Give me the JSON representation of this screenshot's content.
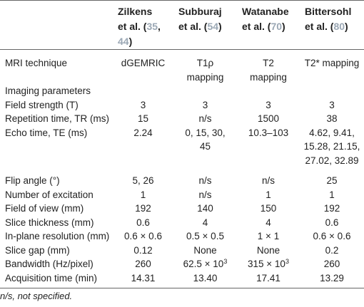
{
  "headers": {
    "c1": {
      "name": "Zilkens",
      "suffix_pre": "et al. (",
      "ref1": "35",
      "sep": ",",
      "ref2": "44",
      "close": ")"
    },
    "c2": {
      "name": "Subburaj",
      "suffix_pre": "et al. (",
      "ref1": "54",
      "close": ")"
    },
    "c3": {
      "name": "Watanabe",
      "suffix_pre": "et al. (",
      "ref1": "70",
      "close": ")"
    },
    "c4": {
      "name": "Bittersohl",
      "suffix_pre": "et al. (",
      "ref1": "80",
      "close": ")"
    }
  },
  "technique": {
    "label": "MRI technique",
    "v1": "dGEMRIC",
    "v2a": "T1ρ",
    "v2b": "mapping",
    "v3a": "T2",
    "v3b": "mapping",
    "v4": "T2* mapping"
  },
  "section": {
    "label": "Imaging parameters"
  },
  "rows": {
    "field": {
      "label": "Field strength (T)",
      "v1": "3",
      "v2": "3",
      "v3": "3",
      "v4": "3"
    },
    "tr": {
      "label": "Repetition time, TR (ms)",
      "v1": "15",
      "v2": "n/s",
      "v3": "1500",
      "v4": "38"
    },
    "te": {
      "label": "Echo time, TE (ms)",
      "v1": "2.24",
      "v2a": "0, 15, 30,",
      "v2b": "45",
      "v3": "10.3–103",
      "v4a": "4.62, 9.41,",
      "v4b": "15.28, 21.15,",
      "v4c": "27.02, 32.89"
    },
    "flip": {
      "label": "Flip angle (°)",
      "v1": "5, 26",
      "v2": "n/s",
      "v3": "n/s",
      "v4": "25"
    },
    "nex": {
      "label": "Number of excitation",
      "v1": "1",
      "v2": "n/s",
      "v3": "1",
      "v4": "1"
    },
    "fov": {
      "label": "Field of view (mm)",
      "v1": "192",
      "v2": "140",
      "v3": "150",
      "v4": "192"
    },
    "slice": {
      "label": "Slice thickness (mm)",
      "v1": "0.6",
      "v2": "4",
      "v3": "4",
      "v4": "0.6"
    },
    "inplane": {
      "label": "In-plane resolution (mm)",
      "v1": "0.6 × 0.6",
      "v2": "0.5 × 0.5",
      "v3": "1 × 1",
      "v4": "0.6 × 0.6"
    },
    "gap": {
      "label": "Slice gap (mm)",
      "v1": "0.12",
      "v2": "None",
      "v3": "None",
      "v4": "0.2"
    },
    "bw": {
      "label": "Bandwidth (Hz/pixel)",
      "v1": "260",
      "v2_base": "62.5 × 10",
      "v2_exp": "3",
      "v3_base": "315 × 10",
      "v3_exp": "3",
      "v4": "260"
    },
    "acq": {
      "label": "Acquisition time (min)",
      "v1": "14.31",
      "v2": "13.40",
      "v3": "17.41",
      "v4": "13.29"
    }
  },
  "footnote": "n/s, not specified."
}
